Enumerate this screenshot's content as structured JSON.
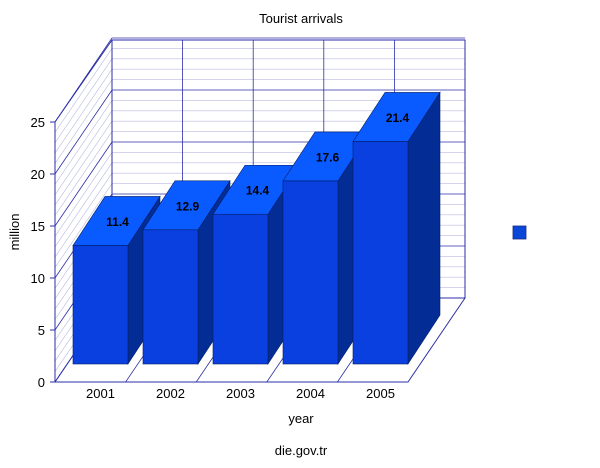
{
  "chart_data": {
    "type": "bar",
    "title": "Tourist arrivals",
    "xlabel": "year",
    "ylabel": "million",
    "source": "die.gov.tr",
    "categories": [
      "2001",
      "2002",
      "2003",
      "2004",
      "2005"
    ],
    "series": [
      {
        "values": [
          11.4,
          12.9,
          14.4,
          17.6,
          21.4
        ]
      }
    ],
    "data_labels": [
      "11.4",
      "12.9",
      "14.4",
      "17.6",
      "21.4"
    ],
    "ylim": [
      0,
      25
    ],
    "yticks": [
      0,
      5,
      10,
      15,
      20,
      25
    ],
    "grid": true,
    "three_d": true,
    "legend_position": "right",
    "colors": {
      "bar_front": "#0a3fe0",
      "bar_top": "#0a5bff",
      "bar_side": "#032c94",
      "grid_line": "#2b2fa8",
      "minor_grid": "#b9bbe0",
      "legend_swatch": "#0a47d8"
    }
  }
}
